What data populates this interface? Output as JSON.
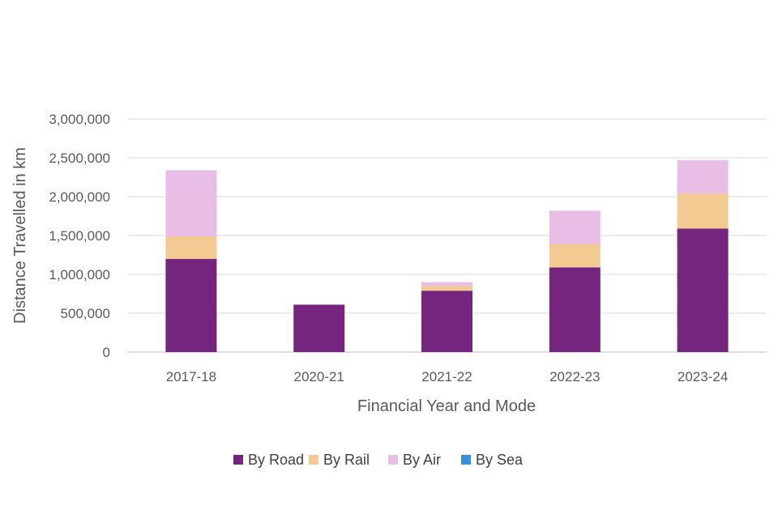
{
  "chart_data": {
    "type": "bar",
    "stacked": true,
    "title": "",
    "xlabel": "Financial Year and Mode",
    "ylabel": "Distance Travelled in km",
    "ylim": [
      0,
      3000000
    ],
    "yticks": [
      0,
      500000,
      1000000,
      1500000,
      2000000,
      2500000,
      3000000
    ],
    "ytick_labels": [
      "0",
      "500,000",
      "1,000,000",
      "1,500,000",
      "2,000,000",
      "2,500,000",
      "3,000,000"
    ],
    "grid": true,
    "legend_position": "bottom",
    "categories": [
      "2017-18",
      "2020-21",
      "2021-22",
      "2022-23",
      "2023-24"
    ],
    "series": [
      {
        "name": "By Road",
        "color": "#76257E",
        "values": [
          1200000,
          610000,
          790000,
          1090000,
          1590000
        ]
      },
      {
        "name": "By Rail",
        "color": "#F2CA92",
        "values": [
          290000,
          0,
          60000,
          300000,
          450000
        ]
      },
      {
        "name": "By Air",
        "color": "#E8BDE6",
        "values": [
          850000,
          0,
          50000,
          430000,
          430000
        ]
      },
      {
        "name": "By Sea",
        "color": "#3E8EDE",
        "values": [
          0,
          0,
          0,
          0,
          0
        ]
      }
    ]
  }
}
